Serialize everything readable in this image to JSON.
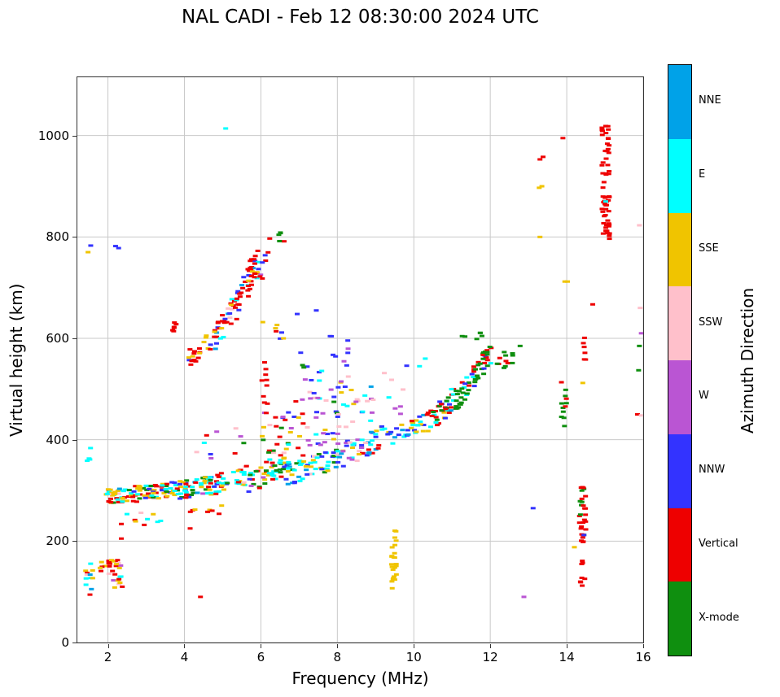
{
  "figure": {
    "title": "NAL CADI - Feb 12 08:30:00 2024 UTC"
  },
  "chart_data": {
    "type": "scatter",
    "title": "NAL CADI - Feb 12 08:30:00 2024 UTC",
    "xlabel": "Frequency (MHz)",
    "ylabel": "Virtual height (km)",
    "xlim": [
      1.2,
      16
    ],
    "ylim": [
      0,
      1115
    ],
    "xticks": [
      2,
      4,
      6,
      8,
      10,
      12,
      14,
      16
    ],
    "yticks": [
      0,
      200,
      400,
      600,
      800,
      1000
    ],
    "grid": true,
    "grid_color": "#c9c9c9",
    "marker": {
      "width": 6,
      "height": 3
    },
    "colorbar": {
      "label": "Azimuth Direction",
      "categories_top_to_bottom": [
        {
          "key": "NNE",
          "label": "NNE",
          "color": "#00A2E8"
        },
        {
          "key": "E",
          "label": "E",
          "color": "#00FFFF"
        },
        {
          "key": "SSE",
          "label": "SSE",
          "color": "#F0C400"
        },
        {
          "key": "SSW",
          "label": "SSW",
          "color": "#FFC0CB"
        },
        {
          "key": "W",
          "label": "W",
          "color": "#BA55D3"
        },
        {
          "key": "NNW",
          "label": "NNW",
          "color": "#3333FF"
        },
        {
          "key": "Vertical",
          "label": "Vertical",
          "color": "#EE0000"
        },
        {
          "key": "X",
          "label": "X-mode",
          "color": "#0F8F0F"
        }
      ]
    },
    "clusters": [
      {
        "name": "e-region-left",
        "x": [
          1.4,
          1.62
        ],
        "y": [
          125,
          125
        ],
        "spread": 38,
        "n": 12,
        "colors": {
          "E": 3,
          "SSW": 2,
          "Vertical": 2,
          "SSE": 2,
          "NNE": 1
        },
        "seed": 11
      },
      {
        "name": "e-region-main",
        "x": [
          2.02,
          2.38
        ],
        "y": [
          135,
          135
        ],
        "spread": 28,
        "n": 26,
        "colors": {
          "Vertical": 6,
          "SSW": 3,
          "SSE": 3,
          "E": 2,
          "W": 1
        },
        "seed": 12
      },
      {
        "name": "e-region-mid",
        "x": [
          1.72,
          1.98
        ],
        "y": [
          150,
          150
        ],
        "spread": 12,
        "n": 5,
        "colors": {
          "SSE": 2,
          "SSW": 2,
          "Vertical": 1
        },
        "seed": 13
      },
      {
        "name": "stray-cyan-1p5",
        "x": [
          1.45,
          1.58
        ],
        "y": [
          375,
          375
        ],
        "spread": 18,
        "n": 4,
        "colors": {
          "E": 4
        },
        "seed": 14
      },
      {
        "name": "f-trace-2",
        "x": [
          1.95,
          2.65
        ],
        "y": [
          288,
          292
        ],
        "spread": 14,
        "n": 40,
        "colors": {
          "SSE": 5,
          "Vertical": 4,
          "E": 4,
          "X": 2,
          "SSW": 1,
          "NNE": 1
        },
        "seed": 21
      },
      {
        "name": "f-trace-3",
        "x": [
          2.65,
          3.65
        ],
        "y": [
          292,
          300
        ],
        "spread": 16,
        "n": 55,
        "colors": {
          "E": 5,
          "SSE": 4,
          "Vertical": 4,
          "NNW": 2,
          "X": 2,
          "NNE": 1,
          "SSW": 1
        },
        "seed": 22
      },
      {
        "name": "f-trace-4",
        "x": [
          3.65,
          4.65
        ],
        "y": [
          298,
          312
        ],
        "spread": 18,
        "n": 55,
        "colors": {
          "E": 5,
          "Vertical": 4,
          "SSE": 4,
          "NNW": 2,
          "X": 2,
          "W": 1,
          "NNE": 1
        },
        "seed": 23
      },
      {
        "name": "f-trace-5",
        "x": [
          4.65,
          5.65
        ],
        "y": [
          308,
          330
        ],
        "spread": 20,
        "n": 45,
        "colors": {
          "E": 5,
          "Vertical": 4,
          "SSE": 3,
          "NNW": 2,
          "X": 2,
          "SSW": 1
        },
        "seed": 24
      },
      {
        "name": "f-trace-6",
        "x": [
          5.65,
          6.65
        ],
        "y": [
          318,
          345
        ],
        "spread": 22,
        "n": 45,
        "colors": {
          "E": 4,
          "SSE": 3,
          "Vertical": 3,
          "X": 3,
          "NNW": 2,
          "W": 1
        },
        "seed": 25
      },
      {
        "name": "f-trace-7",
        "x": [
          6.65,
          8.0
        ],
        "y": [
          330,
          365
        ],
        "spread": 22,
        "n": 55,
        "colors": {
          "E": 6,
          "SSE": 3,
          "Vertical": 2,
          "NNW": 2,
          "X": 2,
          "SSW": 1,
          "NNE": 1
        },
        "seed": 26
      },
      {
        "name": "f-trace-8",
        "x": [
          8.0,
          9.3
        ],
        "y": [
          365,
          410
        ],
        "spread": 25,
        "n": 50,
        "colors": {
          "E": 5,
          "NNW": 3,
          "SSE": 3,
          "W": 2,
          "SSW": 2,
          "Vertical": 1,
          "NNE": 1
        },
        "seed": 27
      },
      {
        "name": "f-trace-9",
        "x": [
          9.3,
          10.35
        ],
        "y": [
          405,
          435
        ],
        "spread": 18,
        "n": 32,
        "colors": {
          "E": 5,
          "NNE": 2,
          "SSE": 2,
          "NNW": 2,
          "Vertical": 1
        },
        "seed": 28
      },
      {
        "name": "f-trace-10",
        "x": [
          10.35,
          11.05
        ],
        "y": [
          430,
          480
        ],
        "spread": 25,
        "n": 40,
        "colors": {
          "Vertical": 5,
          "X": 3,
          "E": 2,
          "NNW": 2,
          "NNE": 1,
          "SSE": 1
        },
        "seed": 29
      },
      {
        "name": "f-trace-11",
        "x": [
          11.05,
          12.05
        ],
        "y": [
          470,
          575
        ],
        "spread": 22,
        "n": 60,
        "colors": {
          "X": 7,
          "Vertical": 3,
          "E": 1,
          "NNW": 1
        },
        "seed": 30
      },
      {
        "name": "f-trace-12",
        "x": [
          12.05,
          12.6
        ],
        "y": [
          545,
          570
        ],
        "spread": 18,
        "n": 12,
        "colors": {
          "X": 4,
          "Vertical": 2
        },
        "seed": 31
      },
      {
        "name": "below-trace-45",
        "x": [
          4.1,
          5.3
        ],
        "y": [
          255,
          262
        ],
        "spread": 10,
        "n": 8,
        "colors": {
          "Vertical": 3,
          "E": 2,
          "SSE": 1
        },
        "seed": 32
      },
      {
        "name": "below-trace-25",
        "x": [
          2.3,
          3.2
        ],
        "y": [
          242,
          248
        ],
        "spread": 12,
        "n": 7,
        "colors": {
          "E": 3,
          "Vertical": 2,
          "SSE": 1,
          "SSW": 1
        },
        "seed": 33
      },
      {
        "name": "above-trace-45",
        "x": [
          4.3,
          5.6
        ],
        "y": [
          385,
          395
        ],
        "spread": 30,
        "n": 10,
        "colors": {
          "SSW": 2,
          "NNW": 2,
          "W": 2,
          "E": 2,
          "Vertical": 1,
          "X": 1
        },
        "seed": 34
      },
      {
        "name": "spread-f-1",
        "x": [
          6.0,
          7.2
        ],
        "y": [
          390,
          430
        ],
        "spread": 60,
        "n": 40,
        "colors": {
          "NNW": 3,
          "W": 2,
          "X": 2,
          "Vertical": 2,
          "SSW": 1,
          "E": 1,
          "SSE": 1
        },
        "seed": 41
      },
      {
        "name": "spread-f-2",
        "x": [
          7.2,
          8.5
        ],
        "y": [
          430,
          460
        ],
        "spread": 70,
        "n": 45,
        "colors": {
          "NNW": 3,
          "W": 3,
          "SSW": 2,
          "E": 2,
          "X": 1,
          "Vertical": 1,
          "SSE": 1
        },
        "seed": 42
      },
      {
        "name": "spread-f-high",
        "x": [
          6.9,
          8.3
        ],
        "y": [
          540,
          580
        ],
        "spread": 45,
        "n": 18,
        "colors": {
          "NNW": 3,
          "W": 1,
          "X": 1,
          "E": 1
        },
        "seed": 43
      },
      {
        "name": "pink-streak",
        "x": [
          8.25,
          8.95
        ],
        "y": [
          478,
          478
        ],
        "spread": 4,
        "n": 6,
        "colors": {
          "SSW": 5,
          "W": 1
        },
        "seed": 44
      },
      {
        "name": "red-smear-6mhz",
        "x": [
          6.0,
          6.18
        ],
        "y": [
          500,
          505
        ],
        "spread": 55,
        "n": 10,
        "colors": {
          "Vertical": 8,
          "SSE": 1
        },
        "seed": 45
      },
      {
        "name": "scatter-9mhz-high",
        "x": [
          8.6,
          9.9
        ],
        "y": [
          470,
          500
        ],
        "spread": 50,
        "n": 14,
        "colors": {
          "W": 2,
          "SSW": 2,
          "NNW": 2,
          "E": 2,
          "NNE": 1
        },
        "seed": 46
      },
      {
        "name": "second-trace-start",
        "x": [
          3.62,
          3.82
        ],
        "y": [
          590,
          640
        ],
        "spread": 15,
        "n": 6,
        "colors": {
          "Vertical": 5,
          "NNW": 1
        },
        "seed": 51
      },
      {
        "name": "second-trace-1",
        "x": [
          4.05,
          4.75
        ],
        "y": [
          562,
          595
        ],
        "spread": 20,
        "n": 20,
        "colors": {
          "Vertical": 5,
          "SSE": 2,
          "NNW": 1,
          "E": 1
        },
        "seed": 52
      },
      {
        "name": "second-trace-2",
        "x": [
          4.75,
          5.35
        ],
        "y": [
          595,
          665
        ],
        "spread": 26,
        "n": 34,
        "colors": {
          "Vertical": 5,
          "NNW": 2,
          "E": 2,
          "SSE": 2,
          "SSW": 1,
          "NNE": 1
        },
        "seed": 53
      },
      {
        "name": "second-trace-3",
        "x": [
          5.35,
          5.95
        ],
        "y": [
          660,
          755
        ],
        "spread": 30,
        "n": 40,
        "colors": {
          "Vertical": 6,
          "NNW": 2,
          "SSE": 2,
          "E": 1,
          "NNE": 1
        },
        "seed": 54
      },
      {
        "name": "second-trace-red-smear",
        "x": [
          5.72,
          5.88
        ],
        "y": [
          735,
          740
        ],
        "spread": 28,
        "n": 10,
        "colors": {
          "Vertical": 9,
          "SSE": 1
        },
        "seed": 55
      },
      {
        "name": "second-trace-top",
        "x": [
          5.95,
          6.25
        ],
        "y": [
          720,
          780
        ],
        "spread": 25,
        "n": 8,
        "colors": {
          "NNW": 4,
          "Vertical": 2,
          "W": 1
        },
        "seed": 56
      },
      {
        "name": "green-800",
        "x": [
          6.42,
          6.62
        ],
        "y": [
          798,
          800
        ],
        "spread": 10,
        "n": 5,
        "colors": {
          "X": 4,
          "Vertical": 1
        },
        "seed": 57
      },
      {
        "name": "mid-6p5-615",
        "x": [
          6.35,
          6.6
        ],
        "y": [
          615,
          615
        ],
        "spread": 30,
        "n": 6,
        "colors": {
          "NNW": 2,
          "SSE": 2,
          "X": 1,
          "Vertical": 1
        },
        "seed": 58
      },
      {
        "name": "rfi-9p5-yellow",
        "x": [
          9.42,
          9.58
        ],
        "y": [
          165,
          165
        ],
        "spread": 58,
        "n": 24,
        "colors": {
          "SSE": 1
        },
        "seed": 61
      },
      {
        "name": "rfi-14p4-mid",
        "x": [
          14.33,
          14.5
        ],
        "y": [
          252,
          252
        ],
        "spread": 55,
        "n": 30,
        "colors": {
          "Vertical": 8,
          "X": 3
        },
        "seed": 62
      },
      {
        "name": "rfi-14p4-low",
        "x": [
          14.35,
          14.48
        ],
        "y": [
          112,
          112
        ],
        "spread": 16,
        "n": 5,
        "colors": {
          "Vertical": 1
        },
        "seed": 63
      },
      {
        "name": "rfi-14p4-155",
        "x": [
          14.35,
          14.45
        ],
        "y": [
          157,
          157
        ],
        "spread": 8,
        "n": 3,
        "colors": {
          "Vertical": 1
        },
        "seed": 64
      },
      {
        "name": "rfi-14p4-580",
        "x": [
          14.35,
          14.5
        ],
        "y": [
          580,
          580
        ],
        "spread": 22,
        "n": 6,
        "colors": {
          "Vertical": 1
        },
        "seed": 65
      },
      {
        "name": "rfi-15-red-col",
        "x": [
          14.92,
          15.12
        ],
        "y": [
          905,
          905
        ],
        "spread": 115,
        "n": 60,
        "colors": {
          "Vertical": 1
        },
        "seed": 66
      },
      {
        "name": "cluster-13p9",
        "x": [
          13.86,
          14.0
        ],
        "y": [
          470,
          470
        ],
        "spread": 45,
        "n": 12,
        "colors": {
          "Vertical": 7,
          "X": 5
        },
        "seed": 67
      },
      {
        "name": "green-above-trace",
        "x": [
          11.2,
          11.85
        ],
        "y": [
          595,
          605
        ],
        "spread": 12,
        "n": 6,
        "colors": {
          "X": 1
        },
        "seed": 68
      }
    ],
    "singles": [
      [
        5.08,
        1014,
        "E"
      ],
      [
        2.2,
        782,
        "NNW"
      ],
      [
        2.28,
        778,
        "NNW"
      ],
      [
        1.55,
        783,
        "NNW"
      ],
      [
        1.48,
        770,
        "SSE"
      ],
      [
        4.42,
        90,
        "Vertical"
      ],
      [
        2.95,
        232,
        "Vertical"
      ],
      [
        3.3,
        238,
        "E"
      ],
      [
        3.38,
        240,
        "E"
      ],
      [
        4.15,
        225,
        "Vertical"
      ],
      [
        2.35,
        205,
        "Vertical"
      ],
      [
        12.88,
        90,
        "W"
      ],
      [
        13.12,
        265,
        "NNW"
      ],
      [
        14.45,
        212,
        "NNW"
      ],
      [
        13.3,
        800,
        "SSE"
      ],
      [
        13.28,
        897,
        "SSE"
      ],
      [
        13.35,
        900,
        "SSE"
      ],
      [
        13.3,
        953,
        "Vertical"
      ],
      [
        13.38,
        958,
        "Vertical"
      ],
      [
        13.9,
        995,
        "Vertical"
      ],
      [
        13.95,
        712,
        "SSE"
      ],
      [
        14.02,
        712,
        "SSE"
      ],
      [
        14.68,
        667,
        "Vertical"
      ],
      [
        14.2,
        188,
        "SSE"
      ],
      [
        15.02,
        870,
        "E"
      ],
      [
        15.9,
        823,
        "SSW"
      ],
      [
        15.92,
        660,
        "SSW"
      ],
      [
        15.95,
        610,
        "W"
      ],
      [
        15.9,
        585,
        "X"
      ],
      [
        15.88,
        537,
        "X"
      ],
      [
        15.85,
        450,
        "Vertical"
      ],
      [
        15.95,
        448,
        "SSW"
      ],
      [
        14.42,
        512,
        "SSE"
      ],
      [
        10.15,
        545,
        "E"
      ],
      [
        10.3,
        560,
        "E"
      ],
      [
        7.45,
        655,
        "NNW"
      ],
      [
        6.95,
        648,
        "NNW"
      ],
      [
        6.05,
        632,
        "SSE"
      ],
      [
        12.78,
        585,
        "X"
      ]
    ]
  }
}
